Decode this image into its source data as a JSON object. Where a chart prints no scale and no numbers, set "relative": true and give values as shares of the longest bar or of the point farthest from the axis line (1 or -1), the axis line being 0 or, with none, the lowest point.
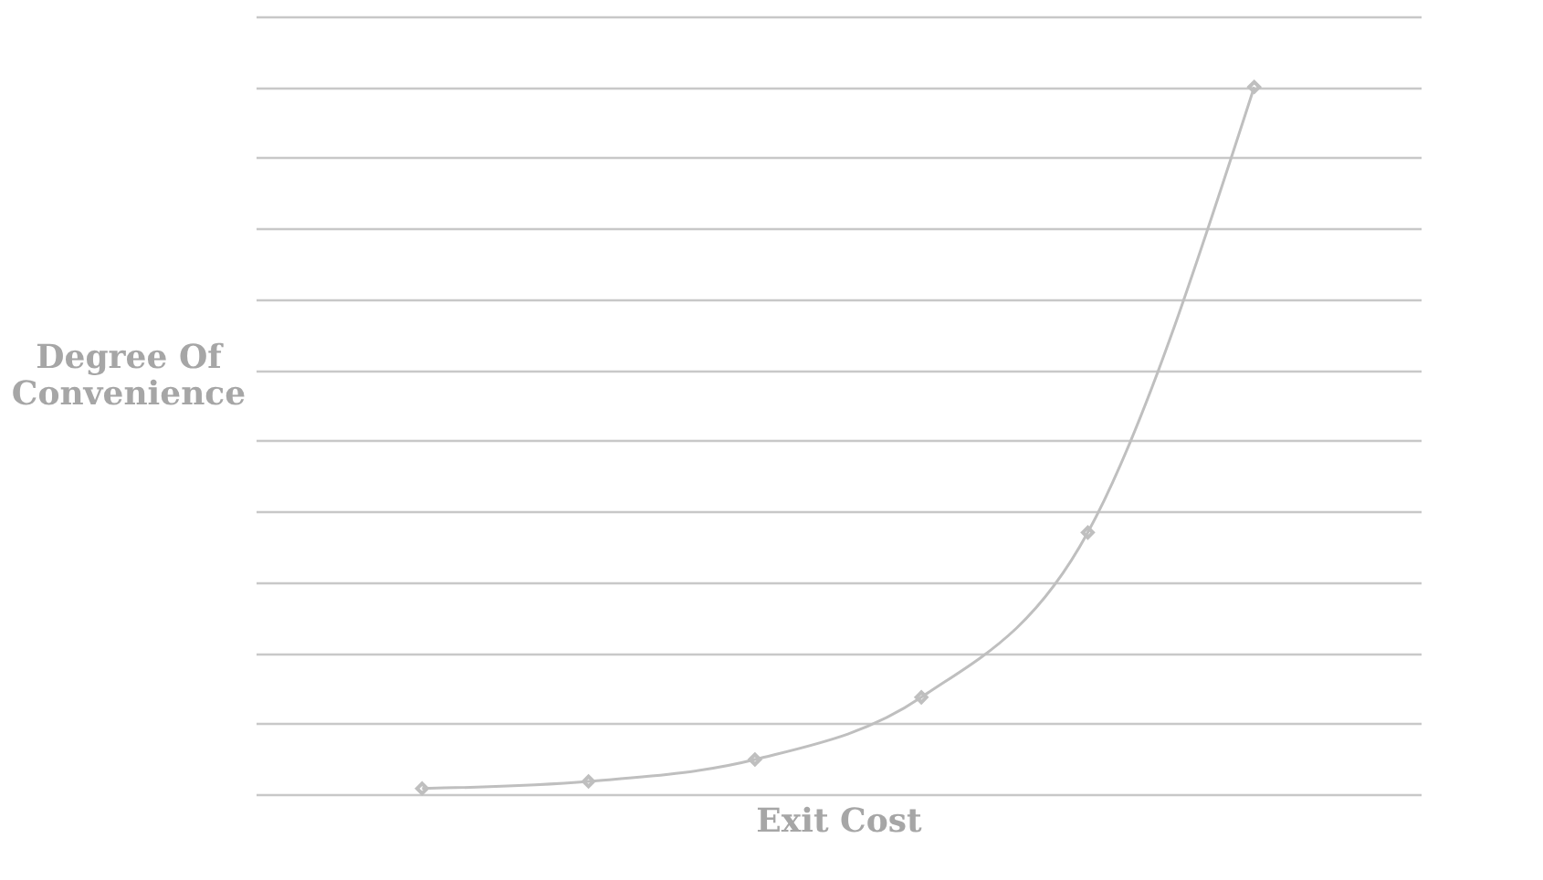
{
  "chart_data": {
    "type": "line",
    "xlabel": "Exit Cost",
    "ylabel": "Degree Of Convenience",
    "categories": [
      null,
      null,
      null,
      null,
      null,
      null
    ],
    "values": [
      0.008,
      0.018,
      0.049,
      0.137,
      0.37,
      1
    ],
    "color": "#bfbfbf",
    "relative": true,
    "grid": "y",
    "marker": "diamond",
    "line_style": "solid"
  }
}
